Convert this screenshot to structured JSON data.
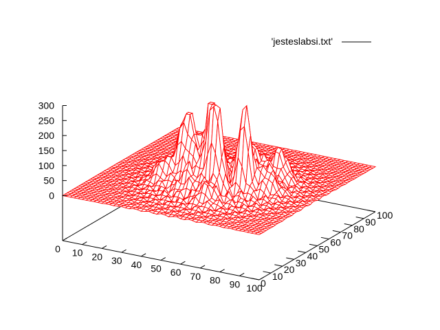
{
  "chart_data": {
    "type": "surface",
    "legend": {
      "label": "'jesteslabsi.txt'",
      "placement": "top-right",
      "line_color": "#000000"
    },
    "series_color": "#ff0000",
    "x_ticks": [
      "0",
      "10",
      "20",
      "30",
      "40",
      "50",
      "60",
      "70",
      "80",
      "90",
      "100"
    ],
    "y_ticks": [
      "0",
      "10",
      "20",
      "30",
      "40",
      "50",
      "60",
      "70",
      "80",
      "90",
      "100"
    ],
    "z_ticks": [
      "0",
      "50",
      "100",
      "150",
      "200",
      "250",
      "300"
    ],
    "xlim": [
      0,
      100
    ],
    "ylim": [
      0,
      100
    ],
    "zlim": [
      0,
      300
    ],
    "grid": false,
    "hidden3d": true,
    "peaks": [
      {
        "x": 69,
        "y": 40,
        "z": 300
      },
      {
        "x": 55,
        "y": 35,
        "z": 270
      },
      {
        "x": 59,
        "y": 33,
        "z": 250
      },
      {
        "x": 39,
        "y": 41,
        "z": 150
      },
      {
        "x": 36,
        "y": 46,
        "z": 140
      },
      {
        "x": 45,
        "y": 50,
        "z": 110
      },
      {
        "x": 50,
        "y": 42,
        "z": 120
      },
      {
        "x": 75,
        "y": 60,
        "z": 100
      },
      {
        "x": 65,
        "y": 55,
        "z": 90
      },
      {
        "x": 30,
        "y": 35,
        "z": 70
      },
      {
        "x": 60,
        "y": 22,
        "z": 60
      },
      {
        "x": 78,
        "y": 45,
        "z": 80
      },
      {
        "x": 48,
        "y": 28,
        "z": 75
      },
      {
        "x": 42,
        "y": 60,
        "z": 60
      }
    ]
  }
}
